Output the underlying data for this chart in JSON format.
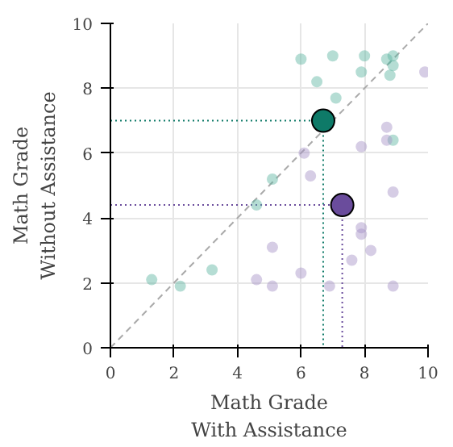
{
  "chart_data": {
    "type": "scatter",
    "xlabel": "Math Grade\nWith Assistance",
    "ylabel": "Math Grade\nWithout Assistance",
    "xlim": [
      0,
      10
    ],
    "ylim": [
      0,
      10
    ],
    "xticks": [
      0,
      2,
      4,
      6,
      8,
      10
    ],
    "yticks": [
      0,
      2,
      4,
      6,
      8,
      10
    ],
    "grid": true,
    "marker": "circle",
    "series": [
      {
        "type": "line",
        "color": "#aaaaaa",
        "line_style": "dashed",
        "marker": "none",
        "x": [
          0,
          10
        ],
        "values": [
          0,
          10
        ]
      },
      {
        "type": "line",
        "color": "#0e7a68",
        "line_style": "dotted",
        "marker": "none",
        "x": [
          0,
          6.7,
          null,
          6.7,
          6.7
        ],
        "values": [
          7.0,
          7.0,
          null,
          7.0,
          0
        ]
      },
      {
        "type": "line",
        "color": "#6a4c9c",
        "line_style": "dotted",
        "marker": "none",
        "x": [
          0,
          7.3,
          null,
          7.3,
          7.3
        ],
        "values": [
          4.4,
          4.4,
          null,
          4.4,
          0
        ]
      },
      {
        "color": "#5ab4a0",
        "x": [
          6.0,
          7.0,
          8.0,
          8.7,
          8.9,
          8.9,
          7.9,
          8.8,
          6.5,
          7.1,
          8.9,
          5.1,
          4.6,
          3.2,
          1.3,
          2.2
        ],
        "values": [
          8.9,
          9.0,
          9.0,
          8.9,
          9.0,
          8.7,
          8.5,
          8.4,
          8.2,
          7.7,
          6.4,
          5.2,
          4.4,
          2.4,
          2.1,
          1.9
        ]
      },
      {
        "color": "#a391c6",
        "x": [
          9.9,
          8.7,
          8.7,
          7.9,
          6.1,
          6.3,
          8.9,
          7.9,
          7.9,
          8.2,
          7.6,
          5.1,
          6.0,
          4.6,
          5.1,
          6.9,
          8.9
        ],
        "values": [
          8.5,
          6.8,
          6.4,
          6.2,
          6.0,
          5.3,
          4.8,
          3.7,
          3.5,
          3.0,
          2.7,
          3.1,
          2.3,
          2.1,
          1.9,
          1.9,
          1.9
        ]
      },
      {
        "color": "#0e7a68",
        "x": [
          6.7
        ],
        "values": [
          7.0
        ]
      },
      {
        "color": "#6a4c9c",
        "x": [
          7.3
        ],
        "values": [
          4.4
        ]
      }
    ]
  }
}
